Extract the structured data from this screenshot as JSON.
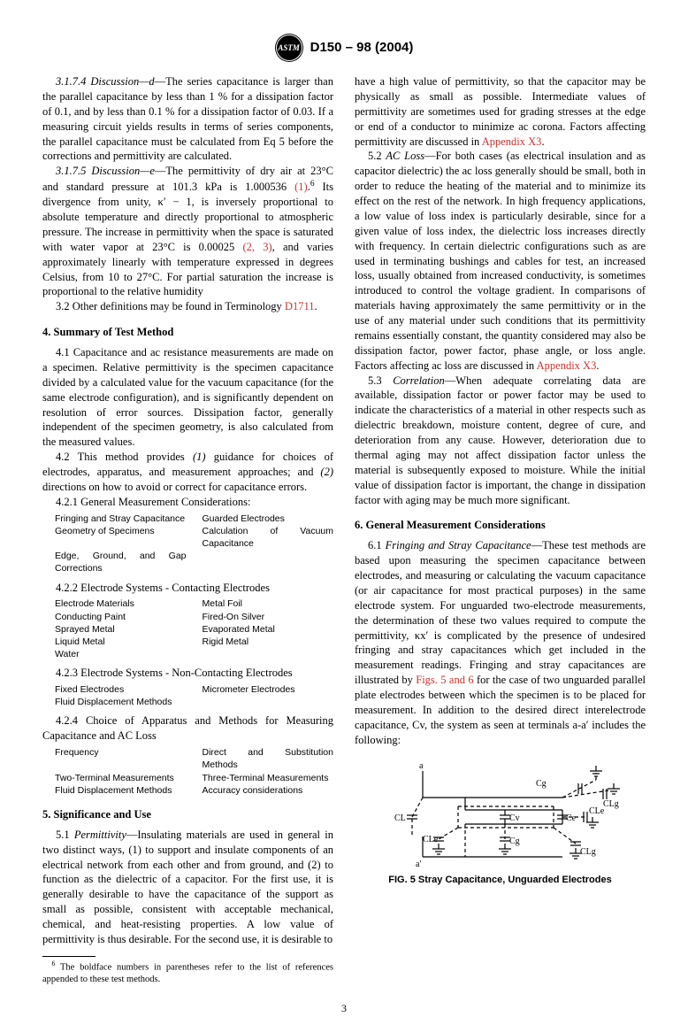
{
  "header": {
    "logo_text": "ASTM",
    "doc_id": "D150 – 98 (2004)"
  },
  "col1": {
    "p3174": "3.1.7.4 Discussion—d—The series capacitance is larger than the parallel capacitance by less than 1 % for a dissipation factor of 0.1, and by less than 0.1 % for a dissipation factor of 0.03. If a measuring circuit yields results in terms of series components, the parallel capacitance must be calculated from Eq 5 before the corrections and permittivity are calculated.",
    "p3175_a": "3.1.7.5 Discussion—e—The permittivity of dry air at 23°C and standard pressure at 101.3 kPa is 1.000536 ",
    "p3175_ref1": "(1)",
    "p3175_b": ".",
    "p3175_sup": "6",
    "p3175_c": " Its divergence from unity, κ′ − 1, is inversely proportional to absolute temperature and directly proportional to atmospheric pressure. The increase in permittivity when the space is saturated with water vapor at 23°C is 0.00025 ",
    "p3175_ref23": "(2, 3)",
    "p3175_d": ", and varies approximately linearly with temperature expressed in degrees Celsius, from 10 to 27°C. For partial saturation the increase is proportional to the relative humidity",
    "p32_a": "3.2 Other definitions may be found in Terminology ",
    "p32_link": "D1711",
    "p32_b": ".",
    "h4": "4. Summary of Test Method",
    "p41": "4.1 Capacitance and ac resistance measurements are made on a specimen. Relative permittivity is the specimen capacitance divided by a calculated value for the vacuum capacitance (for the same electrode configuration), and is significantly dependent on resolution of error sources. Dissipation factor, generally independent of the specimen geometry, is also calculated from the measured values.",
    "p42": "4.2 This method provides (1) guidance for choices of electrodes, apparatus, and measurement approaches; and (2) directions on how to avoid or correct for capacitance errors.",
    "p421": "4.2.1 General Measurement Considerations:",
    "t421": {
      "rows": [
        [
          "Fringing and Stray Capacitance",
          "Guarded Electrodes"
        ],
        [
          "Geometry of Specimens",
          "Calculation of Vacuum Capacitance"
        ],
        [
          "Edge, Ground, and Gap Corrections",
          ""
        ]
      ]
    },
    "p422": "4.2.2 Electrode Systems - Contacting Electrodes",
    "t422": {
      "rows": [
        [
          "Electrode Materials",
          "Metal Foil"
        ],
        [
          "Conducting Paint",
          "Fired-On Silver"
        ],
        [
          "Sprayed Metal",
          "Evaporated Metal"
        ],
        [
          "Liquid Metal",
          "Rigid Metal"
        ],
        [
          "Water",
          ""
        ]
      ]
    },
    "p423": "4.2.3 Electrode Systems - Non-Contacting Electrodes",
    "t423": {
      "rows": [
        [
          "Fixed Electrodes",
          "Micrometer Electrodes"
        ],
        [
          "Fluid Displacement Methods",
          ""
        ]
      ]
    },
    "p424": "4.2.4 Choice of Apparatus and Methods for Measuring Capacitance and AC Loss",
    "t424": {
      "rows": [
        [
          "Frequency",
          "Direct and Substitution Methods"
        ],
        [
          "Two-Terminal Measurements",
          "Three-Terminal Measurements"
        ],
        [
          "Fluid Displacement Methods",
          "Accuracy considerations"
        ]
      ]
    },
    "h5": "5. Significance and Use",
    "p51_a": "5.1 ",
    "p51_it": "Permittivity",
    "p51_b": "—Insulating materials are used in general in two distinct ways, (1) to support and insulate components of an electrical network from each other and from ground, and (2) to function as the dielectric of a capacitor. For the first use, it is generally desirable to have the capacitance of the support as small as possible, consistent with acceptable mechanical, chemical, and heat-resisting properties. A low value of permittivity is thus desirable. For the second use, it is desirable to ",
    "footnote_sup": "6",
    "footnote": " The boldface numbers in parentheses refer to the list of references appended to these test methods."
  },
  "col2": {
    "p51c": "have a high value of permittivity, so that the capacitor may be physically as small as possible. Intermediate values of permittivity are sometimes used for grading stresses at the edge or end of a conductor to minimize ac corona. Factors affecting permittivity are discussed in ",
    "p51c_link": "Appendix X3",
    "p51c_end": ".",
    "p52_a": "5.2 ",
    "p52_it": "AC Loss",
    "p52_b": "—For both cases (as electrical insulation and as capacitor dielectric) the ac loss generally should be small, both in order to reduce the heating of the material and to minimize its effect on the rest of the network. In high frequency applications, a low value of loss index is particularly desirable, since for a given value of loss index, the dielectric loss increases directly with frequency. In certain dielectric configurations such as are used in terminating bushings and cables for test, an increased loss, usually obtained from increased conductivity, is sometimes introduced to control the voltage gradient. In comparisons of materials having approximately the same permittivity or in the use of any material under such conditions that its permittivity remains essentially constant, the quantity considered may also be dissipation factor, power factor, phase angle, or loss angle. Factors affecting ac loss are discussed in ",
    "p52_link": "Appendix X3",
    "p52_end": ".",
    "p53_a": "5.3 ",
    "p53_it": "Correlation",
    "p53_b": "—When adequate correlating data are available, dissipation factor or power factor may be used to indicate the characteristics of a material in other respects such as dielectric breakdown, moisture content, degree of cure, and deterioration from any cause. However, deterioration due to thermal aging may not affect dissipation factor unless the material is subsequently exposed to moisture. While the initial value of dissipation factor is important, the change in dissipation factor with aging may be much more significant.",
    "h6": "6. General Measurement Considerations",
    "p61_a": "6.1 ",
    "p61_it": "Fringing and Stray Capacitance",
    "p61_b": "—These test methods are based upon measuring the specimen capacitance between electrodes, and measuring or calculating the vacuum capacitance (or air capacitance for most practical purposes) in the same electrode system. For unguarded two-electrode measurements, the determination of these two values required to compute the permittivity, κx′ is complicated by the presence of undesired fringing and stray capacitances which get included in the measurement readings. Fringing and stray capacitances are illustrated by ",
    "p61_link": "Figs. 5 and 6",
    "p61_c": " for the case of two unguarded parallel plate electrodes between which the specimen is to be placed for measurement. In addition to the desired direct interelectrode capacitance, Cv, the system as seen at terminals a-a′ includes the following:",
    "fig5": {
      "caption": "FIG. 5 Stray Capacitance, Unguarded Electrodes",
      "labels": {
        "a": "a",
        "ap": "a'",
        "cg": "Cg",
        "clg": "CLg",
        "cl": "CL",
        "cle": "CLe",
        "ce": "Ce",
        "cv": "Cv"
      },
      "stroke": "#000000",
      "stroke_width": 1.2,
      "bg": "#ffffff"
    }
  },
  "page_num": "3"
}
